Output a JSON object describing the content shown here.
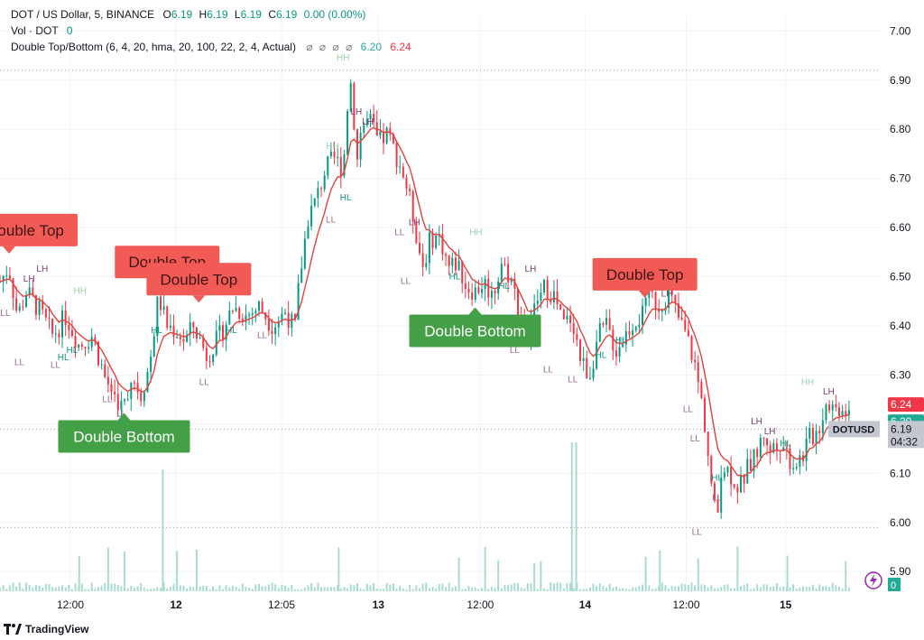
{
  "legend": {
    "symbol": "DOT / US Dollar, 5, BINANCE",
    "o_label": "O",
    "o_val": "6.19",
    "h_label": "H",
    "h_val": "6.19",
    "l_label": "L",
    "l_val": "6.19",
    "c_label": "C",
    "c_val": "6.19",
    "change": "0.00 (0.00%)",
    "vol_label": "Vol · DOT",
    "vol_val": "0",
    "indicator": "Double Top/Bottom (6, 4, 20, hma, 20, 100, 22, 2, 4, Actual)",
    "null_marks": [
      "⌀",
      "⌀",
      "⌀",
      "⌀"
    ],
    "ind_val1": "6.20",
    "ind_val2": "6.24"
  },
  "branding": {
    "name": "TradingView"
  },
  "colors": {
    "up": "#089981",
    "down": "#f23645",
    "hma": "#e0443f",
    "double_top": "#f25a55",
    "double_bottom": "#43a047",
    "label_green": "#9ad3a9",
    "label_purple": "#7b3a6d",
    "volume": "#a9dcd0"
  },
  "chart_data": {
    "type": "candlestick",
    "symbol": "DOTUSD",
    "interval": "5",
    "ylim": [
      5.86,
      7.03
    ],
    "y_ticks": [
      "7.00",
      "6.90",
      "6.80",
      "6.70",
      "6.60",
      "6.50",
      "6.40",
      "6.30",
      "6.20",
      "6.10",
      "6.00",
      "5.90"
    ],
    "x_ticks": [
      {
        "label": "12:00",
        "t": 0.08,
        "bold": false
      },
      {
        "label": "12",
        "t": 0.2,
        "bold": true
      },
      {
        "label": "12:05",
        "t": 0.32,
        "bold": false
      },
      {
        "label": "13",
        "t": 0.43,
        "bold": true
      },
      {
        "label": "12:00",
        "t": 0.546,
        "bold": false
      },
      {
        "label": "14",
        "t": 0.665,
        "bold": true
      },
      {
        "label": "12:00",
        "t": 0.78,
        "bold": false
      },
      {
        "label": "15",
        "t": 0.893,
        "bold": true
      }
    ],
    "dotted_levels": [
      6.92,
      6.19,
      5.99
    ],
    "price_labels": [
      {
        "text": "6.24",
        "value": 6.24,
        "bg": "#f23645",
        "color": "#ffffff"
      },
      {
        "text": "6.20",
        "value": 6.205,
        "bg": "#22ab94",
        "color": "#ffffff"
      },
      {
        "text": "6.19",
        "value": 6.19,
        "bg": "#c4c7cf",
        "color": "#131722",
        "sub": "04:32",
        "tag": "DOTUSD"
      }
    ],
    "volume_label": {
      "text": "0",
      "bg": "#22ab94"
    },
    "price_path": [
      [
        0.0,
        6.49
      ],
      [
        0.01,
        6.52
      ],
      [
        0.02,
        6.42
      ],
      [
        0.03,
        6.47
      ],
      [
        0.045,
        6.43
      ],
      [
        0.06,
        6.38
      ],
      [
        0.075,
        6.42
      ],
      [
        0.09,
        6.36
      ],
      [
        0.105,
        6.38
      ],
      [
        0.12,
        6.29
      ],
      [
        0.13,
        6.26
      ],
      [
        0.14,
        6.23
      ],
      [
        0.15,
        6.3
      ],
      [
        0.16,
        6.26
      ],
      [
        0.17,
        6.32
      ],
      [
        0.18,
        6.46
      ],
      [
        0.19,
        6.4
      ],
      [
        0.2,
        6.39
      ],
      [
        0.21,
        6.37
      ],
      [
        0.22,
        6.4
      ],
      [
        0.235,
        6.34
      ],
      [
        0.25,
        6.38
      ],
      [
        0.265,
        6.44
      ],
      [
        0.28,
        6.42
      ],
      [
        0.295,
        6.44
      ],
      [
        0.31,
        6.4
      ],
      [
        0.325,
        6.43
      ],
      [
        0.335,
        6.39
      ],
      [
        0.34,
        6.49
      ],
      [
        0.35,
        6.62
      ],
      [
        0.36,
        6.66
      ],
      [
        0.37,
        6.72
      ],
      [
        0.38,
        6.74
      ],
      [
        0.39,
        6.72
      ],
      [
        0.395,
        6.85
      ],
      [
        0.4,
        6.91
      ],
      [
        0.405,
        6.72
      ],
      [
        0.41,
        6.8
      ],
      [
        0.42,
        6.82
      ],
      [
        0.43,
        6.77
      ],
      [
        0.44,
        6.79
      ],
      [
        0.45,
        6.75
      ],
      [
        0.46,
        6.7
      ],
      [
        0.47,
        6.62
      ],
      [
        0.48,
        6.52
      ],
      [
        0.49,
        6.58
      ],
      [
        0.5,
        6.58
      ],
      [
        0.51,
        6.52
      ],
      [
        0.52,
        6.53
      ],
      [
        0.53,
        6.48
      ],
      [
        0.54,
        6.47
      ],
      [
        0.55,
        6.49
      ],
      [
        0.56,
        6.46
      ],
      [
        0.57,
        6.53
      ],
      [
        0.58,
        6.5
      ],
      [
        0.59,
        6.43
      ],
      [
        0.6,
        6.38
      ],
      [
        0.61,
        6.45
      ],
      [
        0.62,
        6.48
      ],
      [
        0.63,
        6.46
      ],
      [
        0.64,
        6.4
      ],
      [
        0.65,
        6.42
      ],
      [
        0.66,
        6.33
      ],
      [
        0.67,
        6.3
      ],
      [
        0.68,
        6.38
      ],
      [
        0.69,
        6.4
      ],
      [
        0.7,
        6.35
      ],
      [
        0.71,
        6.38
      ],
      [
        0.72,
        6.41
      ],
      [
        0.73,
        6.42
      ],
      [
        0.74,
        6.46
      ],
      [
        0.75,
        6.44
      ],
      [
        0.76,
        6.47
      ],
      [
        0.77,
        6.42
      ],
      [
        0.78,
        6.38
      ],
      [
        0.79,
        6.32
      ],
      [
        0.8,
        6.22
      ],
      [
        0.81,
        6.05
      ],
      [
        0.815,
        6.0
      ],
      [
        0.82,
        6.12
      ],
      [
        0.83,
        6.1
      ],
      [
        0.84,
        6.07
      ],
      [
        0.85,
        6.11
      ],
      [
        0.86,
        6.14
      ],
      [
        0.87,
        6.19
      ],
      [
        0.875,
        6.13
      ],
      [
        0.88,
        6.17
      ],
      [
        0.89,
        6.16
      ],
      [
        0.9,
        6.12
      ],
      [
        0.91,
        6.13
      ],
      [
        0.92,
        6.17
      ],
      [
        0.93,
        6.19
      ],
      [
        0.94,
        6.25
      ],
      [
        0.95,
        6.23
      ],
      [
        0.96,
        6.24
      ],
      [
        0.965,
        6.22
      ]
    ],
    "patterns": [
      {
        "text": "Double Top",
        "type": "top",
        "x": 0.012,
        "y": 6.595,
        "clip_left": true
      },
      {
        "text": "Double Top",
        "type": "top",
        "x": 0.19,
        "y": 6.53
      },
      {
        "text": "Double Top",
        "type": "top",
        "x": 0.226,
        "y": 6.495
      },
      {
        "text": "Double Top",
        "type": "top",
        "x": 0.733,
        "y": 6.505
      },
      {
        "text": "Double Bottom",
        "type": "bottom",
        "x": 0.141,
        "y": 6.175
      },
      {
        "text": "Double Bottom",
        "type": "bottom",
        "x": 0.54,
        "y": 6.39
      }
    ],
    "swing_labels": [
      {
        "text": "HH",
        "x": 0.39,
        "y": 6.94,
        "kind": "high"
      },
      {
        "text": "LH",
        "x": 0.033,
        "y": 6.49,
        "kind": "high"
      },
      {
        "text": "LH",
        "x": 0.048,
        "y": 6.51,
        "kind": "high"
      },
      {
        "text": "HH",
        "x": 0.091,
        "y": 6.465,
        "kind": "high"
      },
      {
        "text": "LH",
        "x": 0.405,
        "y": 6.83,
        "kind": "high"
      },
      {
        "text": "LH",
        "x": 0.418,
        "y": 6.81,
        "kind": "high"
      },
      {
        "text": "HH",
        "x": 0.378,
        "y": 6.76,
        "kind": "high"
      },
      {
        "text": "LH",
        "x": 0.471,
        "y": 6.605,
        "kind": "high"
      },
      {
        "text": "HH",
        "x": 0.541,
        "y": 6.585,
        "kind": "high"
      },
      {
        "text": "LH",
        "x": 0.603,
        "y": 6.51,
        "kind": "high"
      },
      {
        "text": "LH",
        "x": 0.704,
        "y": 6.49,
        "kind": "high"
      },
      {
        "text": "LH",
        "x": 0.758,
        "y": 6.46,
        "kind": "high"
      },
      {
        "text": "HH",
        "x": 0.918,
        "y": 6.28,
        "kind": "high"
      },
      {
        "text": "LH",
        "x": 0.942,
        "y": 6.26,
        "kind": "high"
      },
      {
        "text": "LH",
        "x": 0.86,
        "y": 6.2,
        "kind": "high"
      },
      {
        "text": "LH",
        "x": 0.875,
        "y": 6.18,
        "kind": "high"
      },
      {
        "text": "LL",
        "x": 0.006,
        "y": 6.42,
        "kind": "low"
      },
      {
        "text": "LL",
        "x": 0.022,
        "y": 6.32,
        "kind": "low"
      },
      {
        "text": "LL",
        "x": 0.063,
        "y": 6.315,
        "kind": "low"
      },
      {
        "text": "LL",
        "x": 0.122,
        "y": 6.245,
        "kind": "low"
      },
      {
        "text": "LL",
        "x": 0.138,
        "y": 6.215,
        "kind": "low"
      },
      {
        "text": "LL",
        "x": 0.232,
        "y": 6.28,
        "kind": "low"
      },
      {
        "text": "LL",
        "x": 0.298,
        "y": 6.375,
        "kind": "low"
      },
      {
        "text": "LL",
        "x": 0.376,
        "y": 6.61,
        "kind": "low"
      },
      {
        "text": "LL",
        "x": 0.454,
        "y": 6.585,
        "kind": "low"
      },
      {
        "text": "LL",
        "x": 0.461,
        "y": 6.485,
        "kind": "low"
      },
      {
        "text": "LL",
        "x": 0.585,
        "y": 6.345,
        "kind": "low"
      },
      {
        "text": "LL",
        "x": 0.623,
        "y": 6.305,
        "kind": "low"
      },
      {
        "text": "LL",
        "x": 0.651,
        "y": 6.285,
        "kind": "low"
      },
      {
        "text": "LL",
        "x": 0.782,
        "y": 6.225,
        "kind": "low"
      },
      {
        "text": "LL",
        "x": 0.79,
        "y": 6.165,
        "kind": "low"
      },
      {
        "text": "LL",
        "x": 0.792,
        "y": 5.975,
        "kind": "low"
      },
      {
        "text": "LL",
        "x": 0.815,
        "y": 6.045,
        "kind": "low"
      },
      {
        "text": "HL",
        "x": 0.393,
        "y": 6.655,
        "kind": "higherlow"
      },
      {
        "text": "HL",
        "x": 0.072,
        "y": 6.33,
        "kind": "higherlow"
      },
      {
        "text": "HL",
        "x": 0.082,
        "y": 6.345,
        "kind": "higherlow"
      },
      {
        "text": "HL",
        "x": 0.178,
        "y": 6.385,
        "kind": "higherlow"
      },
      {
        "text": "HL",
        "x": 0.263,
        "y": 6.385,
        "kind": "higherlow"
      },
      {
        "text": "HL",
        "x": 0.517,
        "y": 6.495,
        "kind": "higherlow"
      },
      {
        "text": "HL",
        "x": 0.573,
        "y": 6.475,
        "kind": "higherlow"
      },
      {
        "text": "HL",
        "x": 0.683,
        "y": 6.335,
        "kind": "higherlow"
      },
      {
        "text": "HL",
        "x": 0.706,
        "y": 6.365,
        "kind": "higherlow"
      },
      {
        "text": "HL",
        "x": 0.815,
        "y": 6.085,
        "kind": "higherlow"
      },
      {
        "text": "HL",
        "x": 0.893,
        "y": 6.155,
        "kind": "higherlow"
      }
    ]
  }
}
